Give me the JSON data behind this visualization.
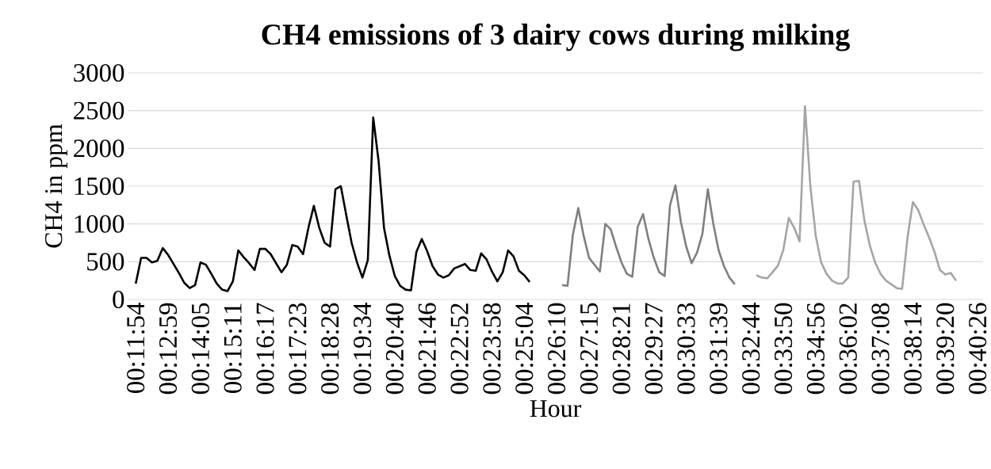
{
  "chart_data": {
    "type": "line",
    "title": "CH4 emissions of 3 dairy cows during milking",
    "xlabel": "Hour",
    "ylabel": "CH4 in ppm",
    "categories": [
      "00:11:54",
      null,
      null,
      null,
      null,
      null,
      "00:12:59",
      null,
      null,
      null,
      null,
      null,
      "00:14:05",
      null,
      null,
      null,
      null,
      null,
      "00:15:11",
      null,
      null,
      null,
      null,
      null,
      "00:16:17",
      null,
      null,
      null,
      null,
      null,
      "00:17:23",
      null,
      null,
      null,
      null,
      null,
      "00:18:28",
      null,
      null,
      null,
      null,
      null,
      "00:19:34",
      null,
      null,
      null,
      null,
      null,
      "00:20:40",
      null,
      null,
      null,
      null,
      null,
      "00:21:46",
      null,
      null,
      null,
      null,
      null,
      "00:22:52",
      null,
      null,
      null,
      null,
      null,
      "00:23:58",
      null,
      null,
      null,
      null,
      null,
      "00:25:04",
      null,
      null,
      null,
      null,
      null,
      "00:26:10",
      null,
      null,
      null,
      null,
      null,
      "00:27:15",
      null,
      null,
      null,
      null,
      null,
      "00:28:21",
      null,
      null,
      null,
      null,
      null,
      "00:29:27",
      null,
      null,
      null,
      null,
      null,
      "00:30:33",
      null,
      null,
      null,
      null,
      null,
      "00:31:39",
      null,
      null,
      null,
      null,
      null,
      "00:32:44",
      null,
      null,
      null,
      null,
      null,
      "00:33:50",
      null,
      null,
      null,
      null,
      null,
      "00:34:56",
      null,
      null,
      null,
      null,
      null,
      "00:36:02",
      null,
      null,
      null,
      null,
      null,
      "00:37:08",
      null,
      null,
      null,
      null,
      null,
      "00:38:14",
      null,
      null,
      null,
      null,
      null,
      "00:39:20",
      null,
      null,
      null,
      null,
      null,
      "00:40:26"
    ],
    "series": [
      {
        "color": "#000000",
        "values": [
          210,
          550,
          550,
          490,
          510,
          680,
          590,
          470,
          350,
          220,
          150,
          190,
          490,
          460,
          340,
          210,
          130,
          110,
          240,
          650,
          560,
          480,
          390,
          670,
          670,
          600,
          480,
          360,
          460,
          720,
          700,
          600,
          950,
          1240,
          950,
          750,
          700,
          1460,
          1500,
          1120,
          750,
          490,
          290,
          520,
          2410,
          1830,
          950,
          580,
          310,
          180,
          130,
          120,
          630,
          800,
          640,
          440,
          330,
          290,
          320,
          410,
          440,
          470,
          390,
          380,
          610,
          530,
          370,
          240,
          360,
          650,
          570,
          380,
          320,
          230,
          null,
          null,
          null,
          null,
          null,
          null,
          null,
          null,
          null,
          null,
          null,
          null,
          null,
          null,
          null,
          null,
          null,
          null,
          null,
          null,
          null,
          null,
          null,
          null,
          null,
          null,
          null,
          null,
          null,
          null,
          null,
          null,
          null,
          null,
          null,
          null,
          null,
          null,
          null,
          null,
          null,
          null,
          null,
          null,
          null,
          null,
          null,
          null,
          null,
          null,
          null,
          null,
          null,
          null,
          null,
          null,
          null,
          null,
          null,
          null,
          null,
          null,
          null,
          null,
          null,
          null,
          null,
          null,
          null,
          null,
          null,
          null,
          null,
          null,
          null,
          null,
          null,
          null,
          null,
          null,
          null,
          null,
          null
        ]
      },
      {
        "color": "#7f7f7f",
        "values": [
          null,
          null,
          null,
          null,
          null,
          null,
          null,
          null,
          null,
          null,
          null,
          null,
          null,
          null,
          null,
          null,
          null,
          null,
          null,
          null,
          null,
          null,
          null,
          null,
          null,
          null,
          null,
          null,
          null,
          null,
          null,
          null,
          null,
          null,
          null,
          null,
          null,
          null,
          null,
          null,
          null,
          null,
          null,
          null,
          null,
          null,
          null,
          null,
          null,
          null,
          null,
          null,
          null,
          null,
          null,
          null,
          null,
          null,
          null,
          null,
          null,
          null,
          null,
          null,
          null,
          null,
          null,
          null,
          null,
          null,
          null,
          null,
          null,
          null,
          null,
          null,
          null,
          null,
          null,
          190,
          180,
          860,
          1210,
          840,
          550,
          460,
          370,
          1000,
          930,
          700,
          490,
          340,
          300,
          960,
          1130,
          800,
          550,
          360,
          310,
          1250,
          1510,
          1030,
          700,
          480,
          620,
          870,
          1460,
          1010,
          650,
          440,
          290,
          200,
          null,
          null,
          null,
          null,
          null,
          null,
          null,
          null,
          null,
          null,
          null,
          null,
          null,
          null,
          null,
          null,
          null,
          null,
          null,
          null,
          null,
          null,
          null,
          null,
          null,
          null,
          null,
          null,
          null,
          null,
          null,
          null,
          null,
          null,
          null,
          null,
          null,
          null,
          null,
          null,
          null,
          null,
          null,
          null,
          null
        ]
      },
      {
        "color": "#a5a5a5",
        "values": [
          null,
          null,
          null,
          null,
          null,
          null,
          null,
          null,
          null,
          null,
          null,
          null,
          null,
          null,
          null,
          null,
          null,
          null,
          null,
          null,
          null,
          null,
          null,
          null,
          null,
          null,
          null,
          null,
          null,
          null,
          null,
          null,
          null,
          null,
          null,
          null,
          null,
          null,
          null,
          null,
          null,
          null,
          null,
          null,
          null,
          null,
          null,
          null,
          null,
          null,
          null,
          null,
          null,
          null,
          null,
          null,
          null,
          null,
          null,
          null,
          null,
          null,
          null,
          null,
          null,
          null,
          null,
          null,
          null,
          null,
          null,
          null,
          null,
          null,
          null,
          null,
          null,
          null,
          null,
          null,
          null,
          null,
          null,
          null,
          null,
          null,
          null,
          null,
          null,
          null,
          null,
          null,
          null,
          null,
          null,
          null,
          null,
          null,
          null,
          null,
          null,
          null,
          null,
          null,
          null,
          null,
          null,
          null,
          null,
          null,
          null,
          null,
          null,
          null,
          null,
          320,
          290,
          280,
          360,
          450,
          660,
          1080,
          950,
          770,
          2560,
          1500,
          840,
          490,
          340,
          250,
          210,
          210,
          290,
          1560,
          1570,
          1050,
          720,
          490,
          340,
          250,
          200,
          150,
          140,
          820,
          1290,
          1180,
          990,
          820,
          630,
          390,
          330,
          350,
          250,
          null,
          null,
          null,
          null
        ]
      }
    ],
    "ylim": [
      0,
      3000
    ],
    "yticks": [
      0,
      500,
      1000,
      1500,
      2000,
      2500,
      3000
    ],
    "grid": "y",
    "marker": "none",
    "line_style": "solid"
  }
}
